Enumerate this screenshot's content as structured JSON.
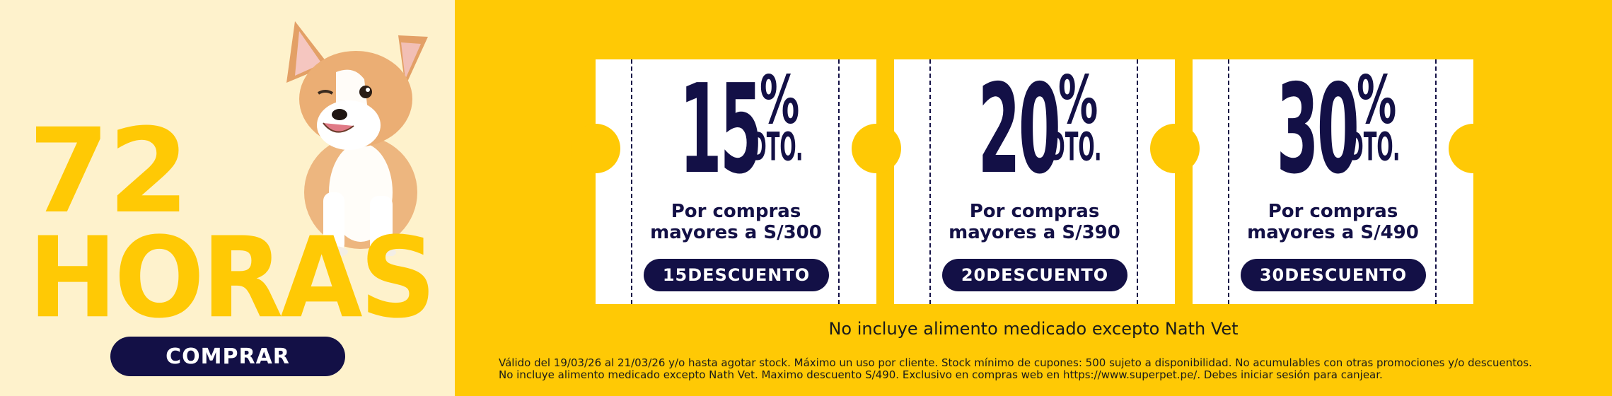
{
  "promo": {
    "duration_number": "72",
    "duration_unit": "HORAS",
    "cta_label": "COMPRAR"
  },
  "coupons": [
    {
      "percent": "15",
      "percent_sign": "%",
      "dto_label": "DTO.",
      "desc_line1": "Por compras",
      "desc_line2": "mayores a S/300",
      "code": "15DESCUENTO"
    },
    {
      "percent": "20",
      "percent_sign": "%",
      "dto_label": "DTO.",
      "desc_line1": "Por compras",
      "desc_line2": "mayores a S/390",
      "code": "20DESCUENTO"
    },
    {
      "percent": "30",
      "percent_sign": "%",
      "dto_label": "DTO.",
      "desc_line1": "Por compras",
      "desc_line2": "mayores a S/490",
      "code": "30DESCUENTO"
    }
  ],
  "note": "No incluye alimento medicado excepto Nath Vet",
  "legal": {
    "line1": "Válido del 19/03/26 al 21/03/26 y/o hasta agotar stock. Máximo un uso por cliente. Stock mínimo de cupones: 500 sujeto a disponibilidad. No acumulables con otras promociones y/o descuentos.",
    "line2": "No incluye alimento medicado excepto Nath Vet. Maximo descuento S/490. Exclusivo en compras web en https://www.superpet.pe/. Debes iniciar sesión para canjear."
  },
  "colors": {
    "yellow": "#FFC905",
    "cream": "#FEF2CC",
    "navy": "#131046",
    "white": "#FFFFFF"
  },
  "icons": {
    "dog": "corgi-puppy-photo"
  }
}
